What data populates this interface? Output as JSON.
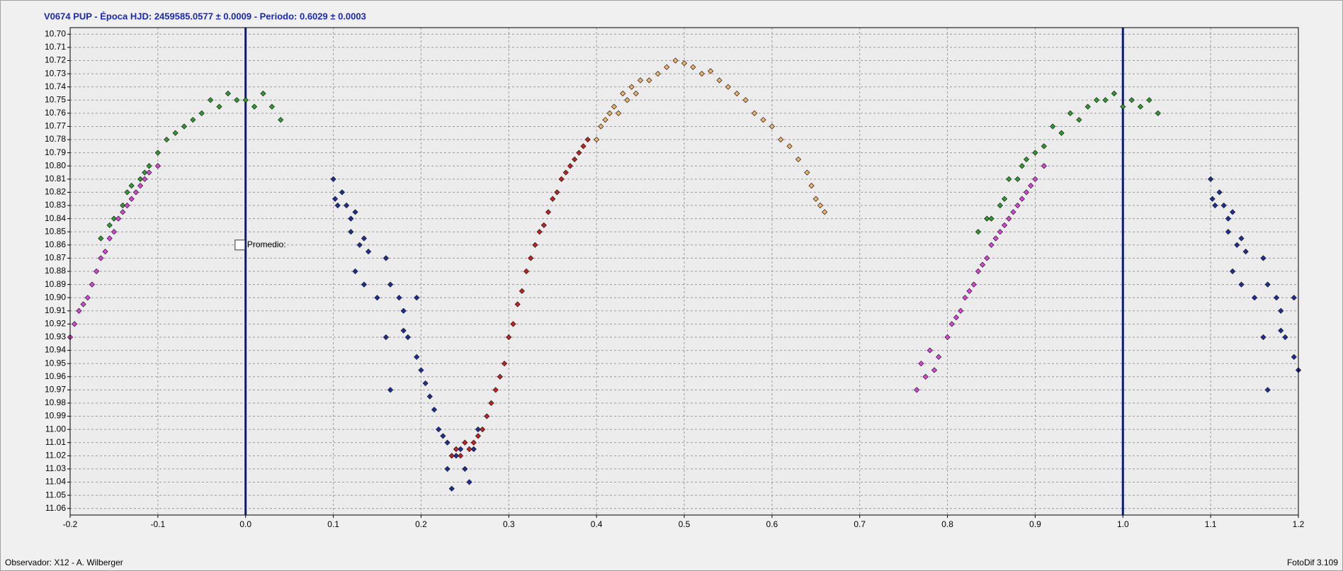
{
  "chart_data": {
    "type": "scatter",
    "title": "V0674 PUP  -  Época HJD: 2459585.0577 ± 0.0009  -  Periodo: 0.6029 ± 0.0003",
    "xlim": [
      -0.2,
      1.2
    ],
    "ylim": [
      10.695,
      11.065
    ],
    "y_inverted": true,
    "grid": true,
    "xticks": [
      -0.2,
      -0.1,
      {
        "value": 0,
        "label": "0.0"
      },
      0.1,
      0.2,
      0.3,
      0.4,
      0.5,
      0.6,
      0.7,
      0.8,
      0.9,
      {
        "value": 1,
        "label": "1.0"
      },
      1.1,
      1.2
    ],
    "yticks": [
      {
        "value": 10.7,
        "label": "10.70"
      },
      10.71,
      10.72,
      10.73,
      10.74,
      10.75,
      10.76,
      10.77,
      10.78,
      10.79,
      {
        "value": 10.8,
        "label": "10.80"
      },
      10.81,
      10.82,
      10.83,
      10.84,
      10.85,
      10.86,
      10.87,
      10.88,
      10.89,
      {
        "value": 10.9,
        "label": "10.90"
      },
      10.91,
      10.92,
      10.93,
      10.94,
      10.95,
      10.96,
      10.97,
      10.98,
      10.99,
      {
        "value": 11,
        "label": "11.00"
      },
      11.01,
      11.02,
      11.03,
      11.04,
      11.05,
      11.06
    ],
    "vlines": [
      0,
      1
    ],
    "vline_color": "#0a1a7a",
    "legend_label": "Promedio:",
    "series": [
      {
        "color": "#2aa02a",
        "x": [
          -0.165,
          -0.155,
          -0.15,
          -0.14,
          -0.135,
          -0.13,
          -0.12,
          -0.115,
          -0.11,
          -0.1,
          -0.09,
          -0.08,
          -0.07,
          -0.06,
          -0.05,
          -0.04,
          -0.03,
          -0.02,
          -0.01,
          0,
          0.01,
          0.02,
          0.03,
          0.04,
          0.835,
          0.845,
          0.85,
          0.86,
          0.865,
          0.87,
          0.88,
          0.885,
          0.89,
          0.9,
          0.91,
          0.92,
          0.93,
          0.94,
          0.95,
          0.96,
          0.97,
          0.98,
          0.99,
          1.0,
          1.01,
          1.02,
          1.03,
          1.04
        ],
        "values": [
          10.855,
          10.845,
          10.84,
          10.83,
          10.82,
          10.815,
          10.81,
          10.805,
          10.8,
          10.79,
          10.78,
          10.775,
          10.77,
          10.765,
          10.76,
          10.75,
          10.755,
          10.745,
          10.75,
          10.75,
          10.755,
          10.745,
          10.755,
          10.765,
          10.85,
          10.84,
          10.84,
          10.83,
          10.825,
          10.81,
          10.81,
          10.8,
          10.795,
          10.79,
          10.785,
          10.77,
          10.775,
          10.76,
          10.765,
          10.755,
          10.75,
          10.75,
          10.745,
          10.755,
          10.75,
          10.755,
          10.75,
          10.76
        ]
      },
      {
        "color": "#e040e0",
        "x": [
          -0.2,
          -0.195,
          -0.19,
          -0.185,
          -0.18,
          -0.175,
          -0.17,
          -0.165,
          -0.16,
          -0.155,
          -0.15,
          -0.145,
          -0.14,
          -0.135,
          -0.13,
          -0.125,
          -0.12,
          -0.115,
          -0.11,
          -0.1,
          0.765,
          0.77,
          0.775,
          0.78,
          0.785,
          0.79,
          0.8,
          0.805,
          0.81,
          0.815,
          0.82,
          0.825,
          0.83,
          0.835,
          0.84,
          0.845,
          0.85,
          0.855,
          0.86,
          0.865,
          0.87,
          0.875,
          0.88,
          0.885,
          0.89,
          0.895,
          0.9,
          0.91
        ],
        "values": [
          10.93,
          10.92,
          10.91,
          10.905,
          10.9,
          10.89,
          10.88,
          10.87,
          10.865,
          10.855,
          10.85,
          10.84,
          10.835,
          10.83,
          10.825,
          10.82,
          10.815,
          10.81,
          10.805,
          10.8,
          10.97,
          10.95,
          10.96,
          10.94,
          10.955,
          10.945,
          10.93,
          10.92,
          10.915,
          10.91,
          10.9,
          10.895,
          10.89,
          10.88,
          10.875,
          10.87,
          10.86,
          10.855,
          10.85,
          10.845,
          10.84,
          10.835,
          10.83,
          10.825,
          10.82,
          10.815,
          10.81,
          10.8
        ]
      },
      {
        "color": "#1a2ea0",
        "x": [
          0.1,
          0.102,
          0.105,
          0.11,
          0.115,
          0.12,
          0.12,
          0.125,
          0.13,
          0.135,
          0.14,
          0.125,
          0.135,
          0.15,
          0.16,
          0.165,
          0.16,
          0.165,
          0.175,
          0.18,
          0.18,
          0.185,
          0.195,
          0.195,
          0.2,
          0.205,
          0.21,
          0.215,
          0.22,
          0.225,
          0.23,
          0.23,
          0.235,
          0.24,
          0.245,
          0.25,
          0.255,
          0.26,
          0.265,
          1.1,
          1.102,
          1.105,
          1.11,
          1.115,
          1.12,
          1.12,
          1.125,
          1.13,
          1.135,
          1.14,
          1.125,
          1.135,
          1.15,
          1.16,
          1.165,
          1.16,
          1.165,
          1.175,
          1.18,
          1.18,
          1.185,
          1.195,
          1.195,
          1.2
        ],
        "values": [
          10.81,
          10.825,
          10.83,
          10.82,
          10.83,
          10.84,
          10.85,
          10.835,
          10.86,
          10.855,
          10.865,
          10.88,
          10.89,
          10.9,
          10.87,
          10.89,
          10.93,
          10.97,
          10.9,
          10.91,
          10.925,
          10.93,
          10.9,
          10.945,
          10.955,
          10.965,
          10.975,
          10.985,
          11.0,
          11.005,
          11.01,
          11.03,
          11.045,
          11.02,
          11.015,
          11.03,
          11.04,
          11.015,
          11.0,
          10.81,
          10.825,
          10.83,
          10.82,
          10.83,
          10.84,
          10.85,
          10.835,
          10.86,
          10.855,
          10.865,
          10.88,
          10.89,
          10.9,
          10.87,
          10.89,
          10.93,
          10.97,
          10.9,
          10.91,
          10.925,
          10.93,
          10.9,
          10.945,
          10.955
        ]
      },
      {
        "color": "#c8201a",
        "x": [
          0.235,
          0.24,
          0.245,
          0.25,
          0.255,
          0.26,
          0.265,
          0.27,
          0.275,
          0.28,
          0.285,
          0.29,
          0.295,
          0.3,
          0.305,
          0.31,
          0.315,
          0.32,
          0.325,
          0.33,
          0.335,
          0.34,
          0.345,
          0.35,
          0.355,
          0.36,
          0.365,
          0.37,
          0.375,
          0.38,
          0.385,
          0.39
        ],
        "values": [
          11.02,
          11.015,
          11.02,
          11.01,
          11.015,
          11.01,
          11.005,
          11.0,
          10.99,
          10.98,
          10.97,
          10.96,
          10.95,
          10.93,
          10.92,
          10.905,
          10.895,
          10.88,
          10.87,
          10.86,
          10.85,
          10.845,
          10.835,
          10.825,
          10.82,
          10.81,
          10.805,
          10.8,
          10.795,
          10.79,
          10.785,
          10.78
        ]
      },
      {
        "color": "#f2b266",
        "x": [
          0.4,
          0.405,
          0.41,
          0.415,
          0.42,
          0.425,
          0.43,
          0.435,
          0.44,
          0.445,
          0.45,
          0.46,
          0.47,
          0.48,
          0.49,
          0.5,
          0.51,
          0.52,
          0.53,
          0.54,
          0.55,
          0.56,
          0.57,
          0.58,
          0.59,
          0.6,
          0.61,
          0.62,
          0.63,
          0.64,
          0.645,
          0.65,
          0.655,
          0.66
        ],
        "values": [
          10.78,
          10.77,
          10.765,
          10.76,
          10.755,
          10.76,
          10.745,
          10.75,
          10.74,
          10.745,
          10.735,
          10.735,
          10.73,
          10.725,
          10.72,
          10.722,
          10.725,
          10.73,
          10.728,
          10.735,
          10.74,
          10.745,
          10.75,
          10.76,
          10.765,
          10.77,
          10.78,
          10.785,
          10.795,
          10.805,
          10.815,
          10.825,
          10.83,
          10.835
        ]
      }
    ]
  },
  "footer": {
    "observer": "Observador: X12 - A. Wilberger",
    "software": "FotoDif 3.109"
  }
}
